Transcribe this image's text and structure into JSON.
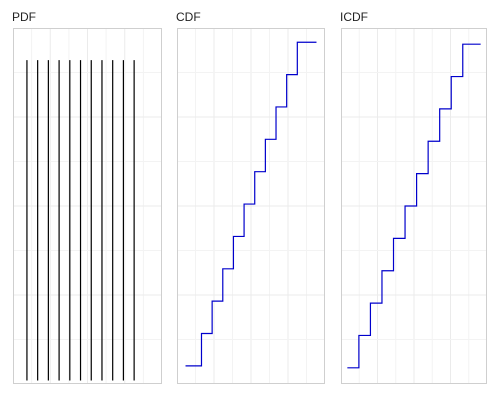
{
  "chart_data": [
    {
      "type": "line",
      "subtype": "pdf-spikes",
      "title": "PDF",
      "x": [
        0,
        1,
        2,
        3,
        4,
        5,
        6,
        7,
        8,
        9,
        10
      ],
      "values": [
        0.0909,
        0.0909,
        0.0909,
        0.0909,
        0.0909,
        0.0909,
        0.0909,
        0.0909,
        0.0909,
        0.0909,
        0.0909
      ],
      "xlim": [
        -1.3,
        12.6
      ],
      "ylim": [
        -0.001,
        0.1
      ],
      "series_color": "#000000",
      "grid": true
    },
    {
      "type": "line",
      "subtype": "step",
      "title": "CDF",
      "x": [
        0,
        1,
        2,
        3,
        4,
        5,
        6,
        7,
        8,
        9,
        10
      ],
      "values": [
        0.0909,
        0.1818,
        0.2727,
        0.3636,
        0.4545,
        0.5455,
        0.6364,
        0.7273,
        0.8182,
        0.9091,
        1.0
      ],
      "x_start": -0.5,
      "x_end": 11.8,
      "xlim": [
        -1.3,
        12.6
      ],
      "ylim": [
        0.04,
        1.04
      ],
      "series_color": "#0000cc",
      "grid": true
    },
    {
      "type": "line",
      "subtype": "step",
      "title": "ICDF",
      "p": [
        0.0909,
        0.1818,
        0.2727,
        0.3636,
        0.4545,
        0.5455,
        0.6364,
        0.7273,
        0.8182,
        0.9091,
        1.0
      ],
      "values": [
        0,
        1,
        2,
        3,
        4,
        5,
        6,
        7,
        8,
        9,
        10
      ],
      "p_start": 0.0,
      "p_end": 1.05,
      "xlim": [
        -0.05,
        1.1
      ],
      "ylim": [
        -0.5,
        10.5
      ],
      "series_color": "#0000cc",
      "grid": true
    }
  ]
}
